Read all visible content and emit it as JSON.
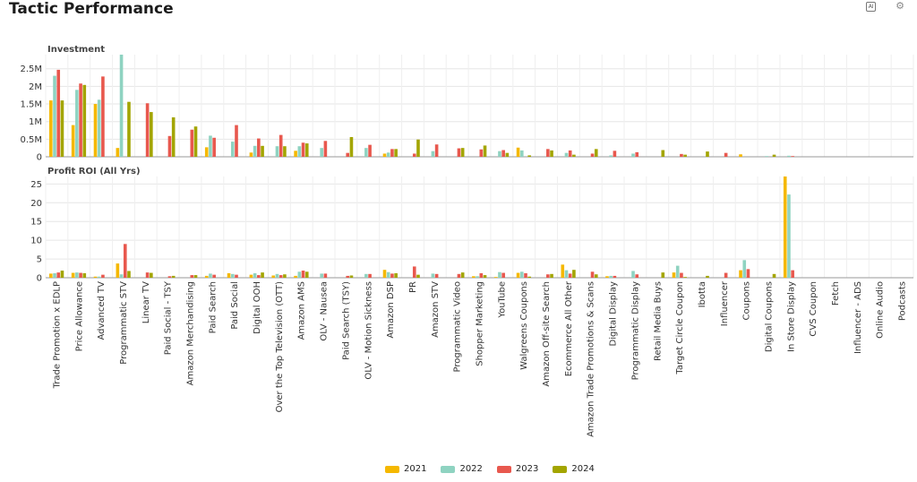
{
  "page": {
    "title": "Tactic Performance"
  },
  "toolbar": {
    "ai_label": "AI",
    "gear_icon": "gear-icon"
  },
  "colors": {
    "2021": "#f5b800",
    "2022": "#8fd3c1",
    "2023": "#e8584e",
    "2024": "#a3a500"
  },
  "chart_data": [
    {
      "type": "bar",
      "title": "Investment",
      "ylim": [
        0,
        2900000
      ],
      "yticks": [
        0,
        500000,
        1000000,
        1500000,
        2000000,
        2500000
      ],
      "ytick_labels": [
        "0",
        "0.5M",
        "1M",
        "1.5M",
        "2M",
        "2.5M"
      ],
      "grid": true,
      "categories": [
        "Trade Promotion x EDLP",
        "Price Allowance",
        "Advanced TV",
        "Programmatic STV",
        "Linear TV",
        "Paid Social - TSY",
        "Amazon Merchandising",
        "Paid Search",
        "Paid Social",
        "Digital OOH",
        "Over the Top Television (OTT)",
        "Amazon AMS",
        "OLV - Nausea",
        "Paid Search (TSY)",
        "OLV - Motion Sickness",
        "Amazon DSP",
        "PR",
        "Amazon STV",
        "Programmatic Video",
        "Shopper Marketing",
        "YouTube",
        "Walgreens Coupons",
        "Amazon Off-site Search",
        "Ecommerce All Other",
        "Amazon Trade Promotions & Scans",
        "Digital Display",
        "Programmatic Display",
        "Retail Media Buys",
        "Target Circle Coupon",
        "Ibotta",
        "Influencer",
        "Coupons",
        "Digital Coupons",
        "In Store Display",
        "CVS Coupon",
        "Fetch",
        "Influencer - ADS",
        "Online Audio",
        "Podcasts"
      ],
      "series": [
        {
          "name": "2021",
          "values": [
            1600000,
            900000,
            1500000,
            250000,
            0,
            0,
            0,
            270000,
            0,
            120000,
            0,
            170000,
            0,
            0,
            0,
            90000,
            0,
            0,
            0,
            0,
            0,
            260000,
            0,
            0,
            0,
            0,
            0,
            0,
            0,
            0,
            0,
            70000,
            0,
            0,
            0,
            0,
            0,
            0,
            0
          ]
        },
        {
          "name": "2022",
          "values": [
            2300000,
            1900000,
            1620000,
            2900000,
            0,
            0,
            0,
            600000,
            430000,
            310000,
            300000,
            300000,
            250000,
            0,
            250000,
            120000,
            0,
            160000,
            0,
            0,
            160000,
            180000,
            0,
            110000,
            0,
            40000,
            90000,
            0,
            0,
            0,
            0,
            0,
            20000,
            30000,
            0,
            0,
            0,
            0,
            0
          ]
        },
        {
          "name": "2023",
          "values": [
            2470000,
            2080000,
            2280000,
            0,
            1520000,
            590000,
            770000,
            540000,
            900000,
            520000,
            620000,
            400000,
            450000,
            110000,
            340000,
            220000,
            90000,
            350000,
            240000,
            210000,
            190000,
            0,
            220000,
            180000,
            90000,
            170000,
            130000,
            0,
            80000,
            0,
            110000,
            0,
            0,
            20000,
            0,
            0,
            0,
            0,
            0
          ]
        },
        {
          "name": "2024",
          "values": [
            1600000,
            2040000,
            0,
            1560000,
            1270000,
            1120000,
            860000,
            0,
            0,
            310000,
            300000,
            380000,
            0,
            560000,
            0,
            220000,
            490000,
            0,
            250000,
            320000,
            110000,
            40000,
            180000,
            60000,
            220000,
            0,
            0,
            190000,
            60000,
            150000,
            0,
            0,
            60000,
            0,
            0,
            0,
            0,
            0,
            0
          ]
        }
      ]
    },
    {
      "type": "bar",
      "title": "Profit ROI (All Yrs)",
      "ylim": [
        0,
        27
      ],
      "yticks": [
        0,
        5,
        10,
        15,
        20,
        25
      ],
      "ytick_labels": [
        "0",
        "5",
        "10",
        "15",
        "20",
        "25"
      ],
      "grid": true,
      "series": [
        {
          "name": "2021",
          "values": [
            1.1,
            1.3,
            0.3,
            3.8,
            0,
            0,
            0,
            0.5,
            1.2,
            0.8,
            0.6,
            0.5,
            0,
            0,
            0,
            2.1,
            0,
            0,
            0,
            0.4,
            0.2,
            1.3,
            0,
            3.5,
            0,
            0.4,
            0,
            0,
            1.4,
            0,
            0,
            2.0,
            0,
            27,
            0,
            0,
            0,
            0,
            0
          ]
        },
        {
          "name": "2022",
          "values": [
            1.2,
            1.4,
            0.3,
            0.9,
            0,
            0,
            0,
            1.1,
            1.0,
            1.2,
            1.0,
            1.6,
            1.1,
            0,
            1.0,
            1.5,
            0,
            1.1,
            0,
            0.4,
            1.5,
            1.6,
            0,
            2.0,
            0,
            0.5,
            1.8,
            0,
            3.2,
            0,
            0,
            4.7,
            0,
            22.2,
            0,
            0,
            0,
            0,
            0
          ]
        },
        {
          "name": "2023",
          "values": [
            1.4,
            1.3,
            0.8,
            9.0,
            1.4,
            0.4,
            0.7,
            0.8,
            0.8,
            0.7,
            0.7,
            1.9,
            1.1,
            0.5,
            1.0,
            1.1,
            3.0,
            1.0,
            1.0,
            1.2,
            1.3,
            1.2,
            0.9,
            1.1,
            1.6,
            0.5,
            0.9,
            0,
            1.3,
            0,
            1.3,
            2.3,
            0,
            2.0,
            0,
            0,
            0,
            0,
            0
          ]
        },
        {
          "name": "2024",
          "values": [
            1.9,
            1.2,
            0,
            1.8,
            1.3,
            0.5,
            0.7,
            0,
            0,
            1.4,
            0.9,
            1.6,
            0,
            0.6,
            0,
            1.2,
            0.8,
            0,
            1.4,
            0.7,
            0,
            0.3,
            1.0,
            2.1,
            0.9,
            0,
            0,
            1.4,
            0.2,
            0.5,
            0,
            0,
            1.0,
            0,
            0,
            0,
            0,
            0,
            0
          ]
        }
      ]
    }
  ],
  "legend": [
    {
      "label": "2021",
      "color": "#f5b800"
    },
    {
      "label": "2022",
      "color": "#8fd3c1"
    },
    {
      "label": "2023",
      "color": "#e8584e"
    },
    {
      "label": "2024",
      "color": "#a3a500"
    }
  ]
}
